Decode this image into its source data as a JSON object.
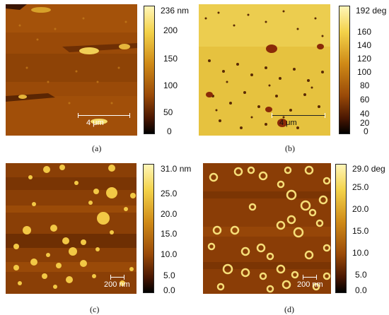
{
  "panels": {
    "a": {
      "caption": "(a)",
      "scale_label": "4 μm",
      "colorbar_labels": [
        "236 nm",
        "200",
        "150",
        "100",
        "50",
        "0"
      ]
    },
    "b": {
      "caption": "(b)",
      "scale_label": "4 μm",
      "colorbar_labels": [
        "192 deg",
        "160",
        "140",
        "120",
        "100",
        "80",
        "60",
        "40",
        "20",
        "0"
      ]
    },
    "c": {
      "caption": "(c)",
      "scale_label": "200 nm",
      "colorbar_labels": [
        "31.0 nm",
        "25.0",
        "20.0",
        "15.0",
        "10.0",
        "5.0",
        "0.0"
      ]
    },
    "d": {
      "caption": "(d)",
      "scale_label": "200 nm",
      "colorbar_labels": [
        "29.0 deg",
        "25.0",
        "20.0",
        "15.0",
        "10.0",
        "5.0",
        "0.0"
      ]
    }
  }
}
